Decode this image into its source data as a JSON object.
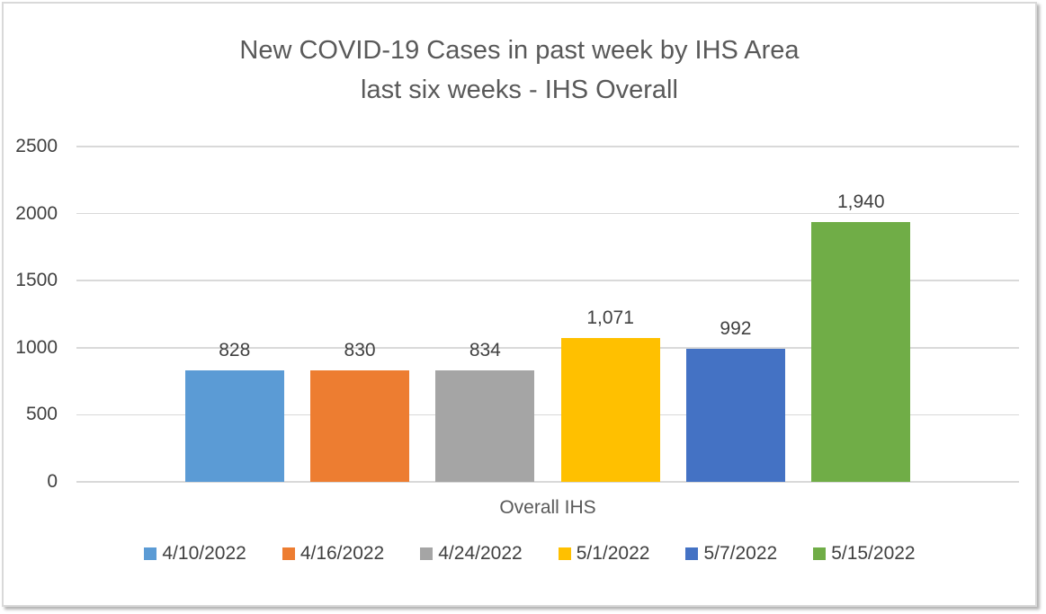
{
  "frame": {
    "border_color": "#D9D9D9",
    "background": "#FFFFFF"
  },
  "chart_data": {
    "type": "bar",
    "title_lines": [
      "New COVID-19 Cases in past week by IHS Area",
      "last six weeks - IHS Overall"
    ],
    "categories": [
      "Overall IHS"
    ],
    "series": [
      {
        "name": "4/10/2022",
        "values": [
          828
        ],
        "label": "828",
        "color": "#5B9BD5"
      },
      {
        "name": "4/16/2022",
        "values": [
          830
        ],
        "label": "830",
        "color": "#ED7D31"
      },
      {
        "name": "4/24/2022",
        "values": [
          834
        ],
        "label": "834",
        "color": "#A5A5A5"
      },
      {
        "name": "5/1/2022",
        "values": [
          1071
        ],
        "label": "1,071",
        "color": "#FFC000"
      },
      {
        "name": "5/7/2022",
        "values": [
          992
        ],
        "label": "992",
        "color": "#4472C4"
      },
      {
        "name": "5/15/2022",
        "values": [
          1940
        ],
        "label": "1,940",
        "color": "#70AD47"
      }
    ],
    "xlabel": "Overall IHS",
    "ylabel": "",
    "ylim": [
      0,
      2500
    ],
    "yticks": [
      0,
      500,
      1000,
      1500,
      2000,
      2500
    ],
    "grid": true,
    "legend_position": "bottom",
    "text_colors": {
      "title": "#595959",
      "axis_ticks": "#404040",
      "data_labels": "#404040",
      "category_label": "#595959",
      "legend": "#404040"
    },
    "gridline_color": "#D9D9D9"
  }
}
